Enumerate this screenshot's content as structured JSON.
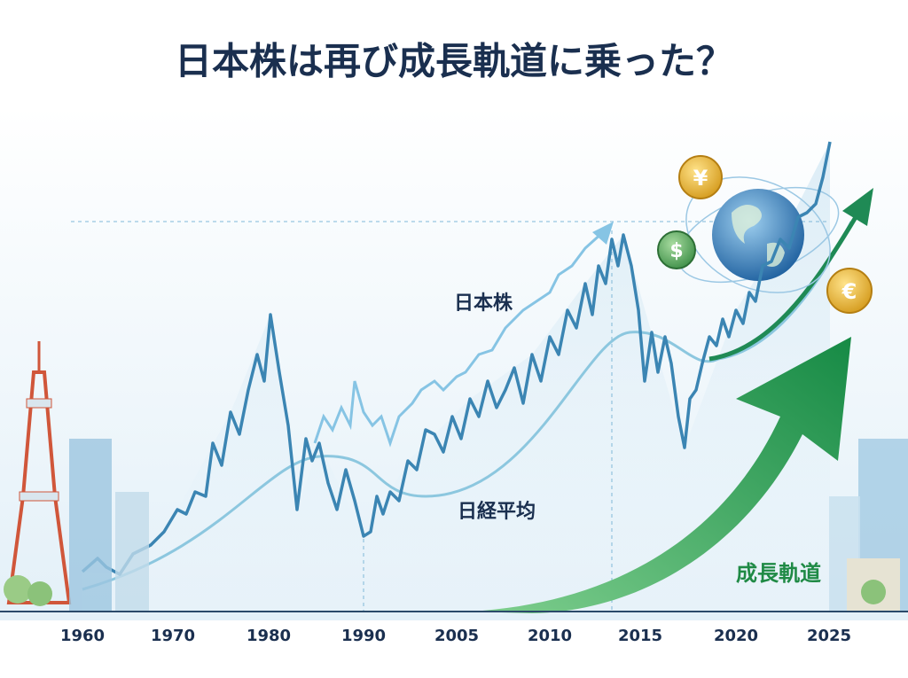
{
  "title": "日本株は再び成長軌道に乗った？",
  "labels": {
    "stocks": "日本株",
    "nikkei": "日経平均",
    "growth": "成長軌道"
  },
  "x_axis_labels": [
    "1960",
    "1970",
    "1980",
    "1990",
    "2005",
    "2010",
    "2015",
    "2020",
    "2025"
  ],
  "coins": {
    "yen": "¥",
    "dollar": "$",
    "euro": "€"
  }
}
